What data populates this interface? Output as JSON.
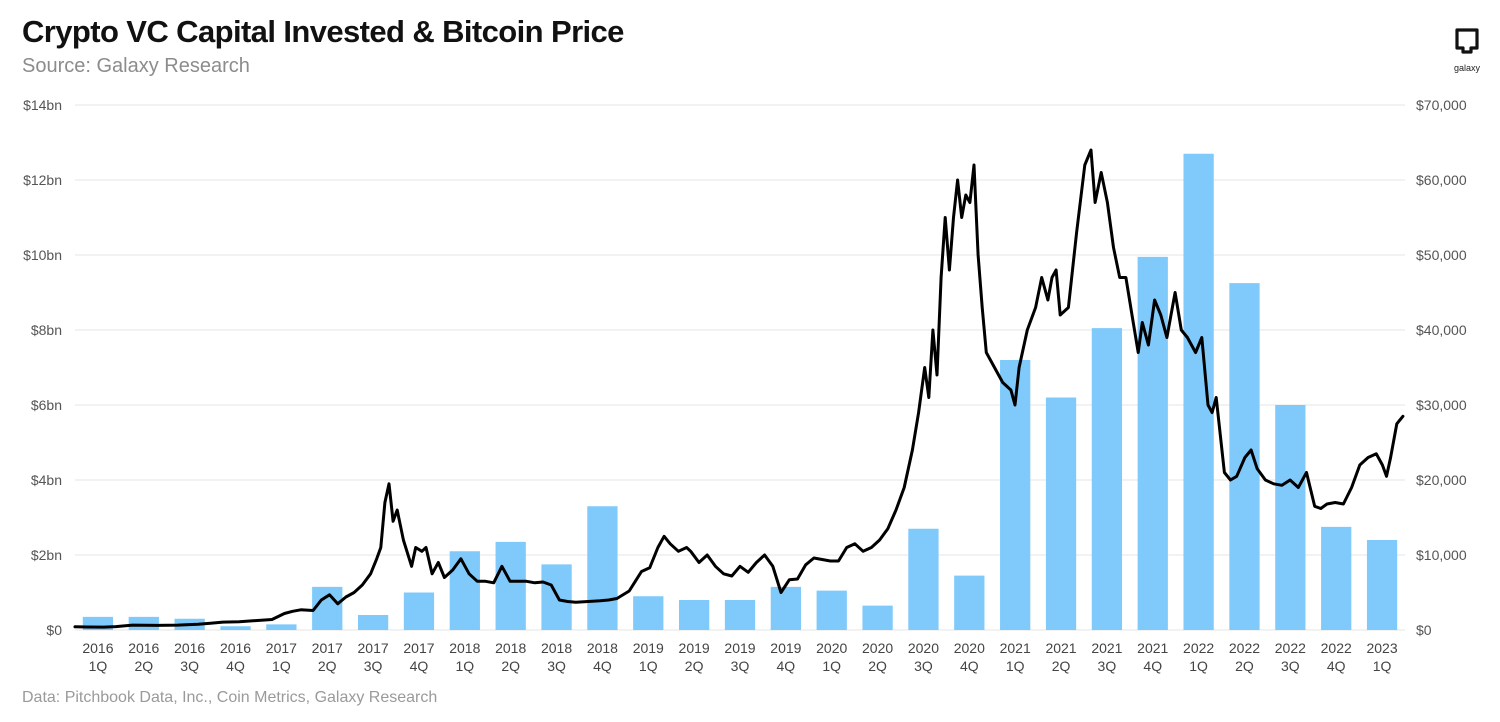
{
  "title": "Crypto VC Capital Invested & Bitcoin Price",
  "subtitle": "Source: Galaxy Research",
  "footer": "Data: Pitchbook Data, Inc., Coin Metrics, Galaxy Research",
  "logo": {
    "icon": "galaxy-logo-icon",
    "text": "galaxy"
  },
  "colors": {
    "bars": "#7fcafb",
    "line": "#000000",
    "grid": "#e4e4e4"
  },
  "chart_data": {
    "type": "bar",
    "grid": true,
    "categories": [
      [
        "2016",
        "1Q"
      ],
      [
        "2016",
        "2Q"
      ],
      [
        "2016",
        "3Q"
      ],
      [
        "2016",
        "4Q"
      ],
      [
        "2017",
        "1Q"
      ],
      [
        "2017",
        "2Q"
      ],
      [
        "2017",
        "3Q"
      ],
      [
        "2017",
        "4Q"
      ],
      [
        "2018",
        "1Q"
      ],
      [
        "2018",
        "2Q"
      ],
      [
        "2018",
        "3Q"
      ],
      [
        "2018",
        "4Q"
      ],
      [
        "2019",
        "1Q"
      ],
      [
        "2019",
        "2Q"
      ],
      [
        "2019",
        "3Q"
      ],
      [
        "2019",
        "4Q"
      ],
      [
        "2020",
        "1Q"
      ],
      [
        "2020",
        "2Q"
      ],
      [
        "2020",
        "3Q"
      ],
      [
        "2020",
        "4Q"
      ],
      [
        "2021",
        "1Q"
      ],
      [
        "2021",
        "2Q"
      ],
      [
        "2021",
        "3Q"
      ],
      [
        "2021",
        "4Q"
      ],
      [
        "2022",
        "1Q"
      ],
      [
        "2022",
        "2Q"
      ],
      [
        "2022",
        "3Q"
      ],
      [
        "2022",
        "4Q"
      ],
      [
        "2023",
        "1Q"
      ]
    ],
    "bar_values_bn": [
      0.35,
      0.35,
      0.3,
      0.1,
      0.15,
      1.15,
      0.4,
      1.0,
      2.1,
      2.35,
      1.75,
      3.3,
      0.9,
      0.8,
      0.8,
      1.15,
      1.05,
      0.65,
      2.7,
      1.45,
      7.2,
      6.2,
      8.05,
      9.95,
      12.7,
      9.25,
      6.0,
      2.75,
      2.4
    ],
    "line_points_usd": [
      [
        0,
        430
      ],
      [
        0.3,
        400
      ],
      [
        0.7,
        380
      ],
      [
        1,
        450
      ],
      [
        1.4,
        650
      ],
      [
        2,
        610
      ],
      [
        2.5,
        650
      ],
      [
        3,
        760
      ],
      [
        3.3,
        900
      ],
      [
        3.6,
        1050
      ],
      [
        4,
        1100
      ],
      [
        4.4,
        1250
      ],
      [
        4.8,
        1400
      ],
      [
        5.1,
        2200
      ],
      [
        5.3,
        2500
      ],
      [
        5.5,
        2700
      ],
      [
        5.8,
        2600
      ],
      [
        6,
        4000
      ],
      [
        6.2,
        4700
      ],
      [
        6.4,
        3500
      ],
      [
        6.6,
        4400
      ],
      [
        6.8,
        5000
      ],
      [
        7,
        6000
      ],
      [
        7.2,
        7500
      ],
      [
        7.35,
        9500
      ],
      [
        7.45,
        11000
      ],
      [
        7.55,
        17000
      ],
      [
        7.65,
        19500
      ],
      [
        7.75,
        14500
      ],
      [
        7.85,
        16000
      ],
      [
        8,
        12000
      ],
      [
        8.2,
        8500
      ],
      [
        8.3,
        11000
      ],
      [
        8.45,
        10500
      ],
      [
        8.55,
        11000
      ],
      [
        8.7,
        7500
      ],
      [
        8.85,
        9000
      ],
      [
        9,
        7000
      ],
      [
        9.2,
        8000
      ],
      [
        9.4,
        9500
      ],
      [
        9.6,
        7500
      ],
      [
        9.8,
        6500
      ],
      [
        10,
        6500
      ],
      [
        10.2,
        6300
      ],
      [
        10.4,
        8500
      ],
      [
        10.6,
        6500
      ],
      [
        10.8,
        6500
      ],
      [
        11,
        6500
      ],
      [
        11.2,
        6300
      ],
      [
        11.4,
        6400
      ],
      [
        11.6,
        6000
      ],
      [
        11.8,
        4000
      ],
      [
        12,
        3800
      ],
      [
        12.2,
        3700
      ],
      [
        12.5,
        3800
      ],
      [
        12.8,
        3900
      ],
      [
        13,
        4000
      ],
      [
        13.2,
        4200
      ],
      [
        13.5,
        5200
      ],
      [
        13.8,
        7800
      ],
      [
        14,
        8300
      ],
      [
        14.2,
        11000
      ],
      [
        14.35,
        12500
      ],
      [
        14.5,
        11500
      ],
      [
        14.7,
        10500
      ],
      [
        14.9,
        11000
      ],
      [
        15,
        10500
      ],
      [
        15.2,
        9000
      ],
      [
        15.4,
        10000
      ],
      [
        15.6,
        8500
      ],
      [
        15.8,
        7500
      ],
      [
        16,
        7200
      ],
      [
        16.2,
        8500
      ],
      [
        16.4,
        7700
      ],
      [
        16.6,
        9000
      ],
      [
        16.8,
        10000
      ],
      [
        17,
        8500
      ],
      [
        17.2,
        5000
      ],
      [
        17.4,
        6700
      ],
      [
        17.6,
        6800
      ],
      [
        17.8,
        8700
      ],
      [
        18,
        9600
      ],
      [
        18.2,
        9400
      ],
      [
        18.4,
        9200
      ],
      [
        18.6,
        9200
      ],
      [
        18.8,
        11000
      ],
      [
        19,
        11500
      ],
      [
        19.2,
        10500
      ],
      [
        19.4,
        11000
      ],
      [
        19.6,
        12000
      ],
      [
        19.8,
        13500
      ],
      [
        20,
        16000
      ],
      [
        20.2,
        19000
      ],
      [
        20.4,
        24000
      ],
      [
        20.55,
        29000
      ],
      [
        20.7,
        35000
      ],
      [
        20.8,
        31000
      ],
      [
        20.9,
        40000
      ],
      [
        21,
        34000
      ],
      [
        21.1,
        47000
      ],
      [
        21.2,
        55000
      ],
      [
        21.3,
        48000
      ],
      [
        21.4,
        55000
      ],
      [
        21.5,
        60000
      ],
      [
        21.6,
        55000
      ],
      [
        21.7,
        58000
      ],
      [
        21.8,
        57000
      ],
      [
        21.9,
        62000
      ],
      [
        22,
        50000
      ],
      [
        22.1,
        43000
      ],
      [
        22.2,
        37000
      ],
      [
        22.3,
        36000
      ],
      [
        22.5,
        34000
      ],
      [
        22.6,
        33000
      ],
      [
        22.8,
        32000
      ],
      [
        22.9,
        30000
      ],
      [
        23,
        35000
      ],
      [
        23.2,
        40000
      ],
      [
        23.4,
        43000
      ],
      [
        23.55,
        47000
      ],
      [
        23.7,
        44000
      ],
      [
        23.8,
        47000
      ],
      [
        23.9,
        48000
      ],
      [
        24,
        42000
      ],
      [
        24.2,
        43000
      ],
      [
        24.4,
        53000
      ],
      [
        24.6,
        62000
      ],
      [
        24.75,
        64000
      ],
      [
        24.85,
        57000
      ],
      [
        25,
        61000
      ],
      [
        25.15,
        57000
      ],
      [
        25.3,
        51000
      ],
      [
        25.45,
        47000
      ],
      [
        25.6,
        47000
      ],
      [
        25.75,
        42000
      ],
      [
        25.9,
        37000
      ],
      [
        26,
        41000
      ],
      [
        26.15,
        38000
      ],
      [
        26.3,
        44000
      ],
      [
        26.45,
        42000
      ],
      [
        26.6,
        39000
      ],
      [
        26.8,
        45000
      ],
      [
        26.95,
        40000
      ],
      [
        27.1,
        39000
      ],
      [
        27.3,
        37000
      ],
      [
        27.45,
        39000
      ],
      [
        27.6,
        30000
      ],
      [
        27.7,
        29000
      ],
      [
        27.8,
        31000
      ],
      [
        28,
        21000
      ],
      [
        28.15,
        20000
      ],
      [
        28.3,
        20500
      ],
      [
        28.5,
        23000
      ],
      [
        28.65,
        24000
      ],
      [
        28.8,
        21500
      ],
      [
        29,
        20000
      ],
      [
        29.2,
        19500
      ],
      [
        29.4,
        19300
      ],
      [
        29.6,
        20000
      ],
      [
        29.8,
        19000
      ],
      [
        30,
        21000
      ],
      [
        30.2,
        16500
      ],
      [
        30.35,
        16200
      ],
      [
        30.5,
        16800
      ],
      [
        30.7,
        17000
      ],
      [
        30.9,
        16800
      ],
      [
        31.1,
        19000
      ],
      [
        31.3,
        22000
      ],
      [
        31.5,
        23000
      ],
      [
        31.7,
        23500
      ],
      [
        31.85,
        22000
      ],
      [
        31.95,
        20500
      ],
      [
        32.05,
        23000
      ],
      [
        32.2,
        27500
      ],
      [
        32.35,
        28500
      ]
    ],
    "x_domain": [
      0,
      32.4
    ],
    "ylim_left": [
      0,
      14
    ],
    "ylim_right": [
      0,
      70000
    ],
    "left_ticks": [
      "$0",
      "$2bn",
      "$4bn",
      "$6bn",
      "$8bn",
      "$10bn",
      "$12bn",
      "$14bn"
    ],
    "right_ticks": [
      "$0",
      "$10,000",
      "$20,000",
      "$30,000",
      "$40,000",
      "$50,000",
      "$60,000",
      "$70,000"
    ]
  }
}
